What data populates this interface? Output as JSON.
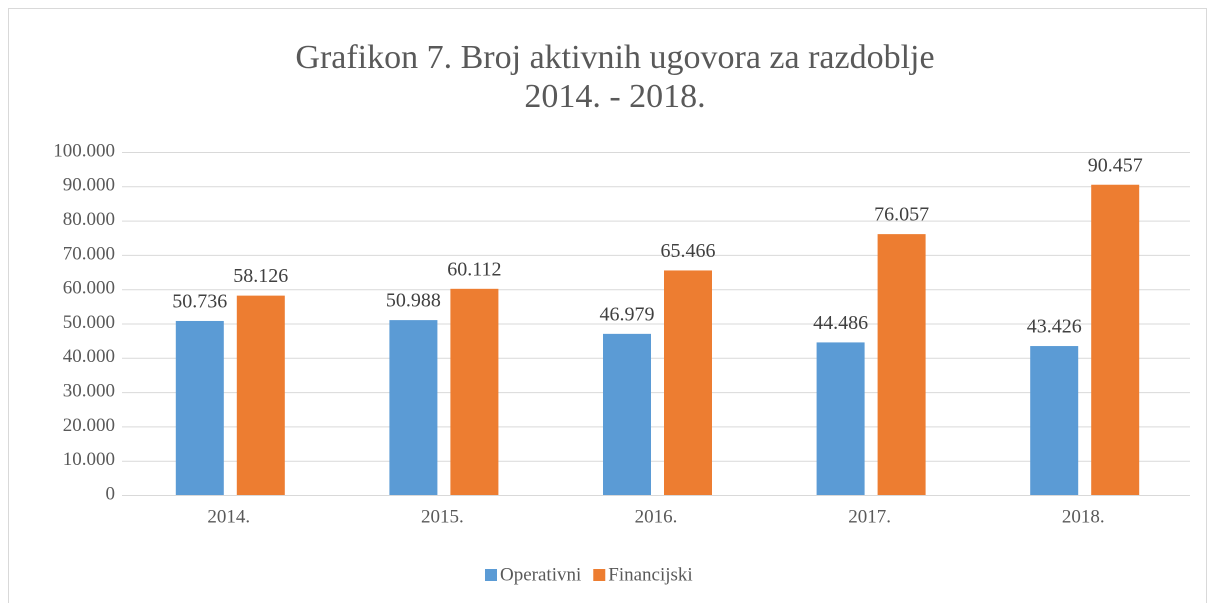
{
  "chart_data": {
    "type": "bar",
    "title": [
      "Grafikon 7. Broj aktivnih ugovora za razdoblje",
      "2014. - 2018."
    ],
    "categories": [
      "2014.",
      "2015.",
      "2016.",
      "2017.",
      "2018."
    ],
    "series": [
      {
        "name": "Operativni",
        "color": "#5b9bd5",
        "values": [
          50736,
          50988,
          46979,
          44486,
          43426
        ],
        "value_labels": [
          "50.736",
          "50.988",
          "46.979",
          "44.486",
          "43.426"
        ]
      },
      {
        "name": "Financijski",
        "color": "#ed7d31",
        "values": [
          58126,
          60112,
          65466,
          76057,
          90457
        ],
        "value_labels": [
          "58.126",
          "60.112",
          "65.466",
          "76.057",
          "90.457"
        ]
      }
    ],
    "ylim": [
      0,
      100000
    ],
    "yticks": [
      0,
      {
        "value": 10000,
        "label": "10.000"
      },
      {
        "value": 20000,
        "label": "20.000"
      },
      {
        "value": 30000,
        "label": "30.000"
      },
      {
        "value": 40000,
        "label": "40.000"
      },
      {
        "value": 50000,
        "label": "50.000"
      },
      {
        "value": 60000,
        "label": "60.000"
      },
      {
        "value": 70000,
        "label": "70.000"
      },
      {
        "value": 80000,
        "label": "80.000"
      },
      {
        "value": 90000,
        "label": "90.000"
      },
      {
        "value": 100000,
        "label": "100.000"
      }
    ],
    "grid": true,
    "legend": "bottom"
  }
}
